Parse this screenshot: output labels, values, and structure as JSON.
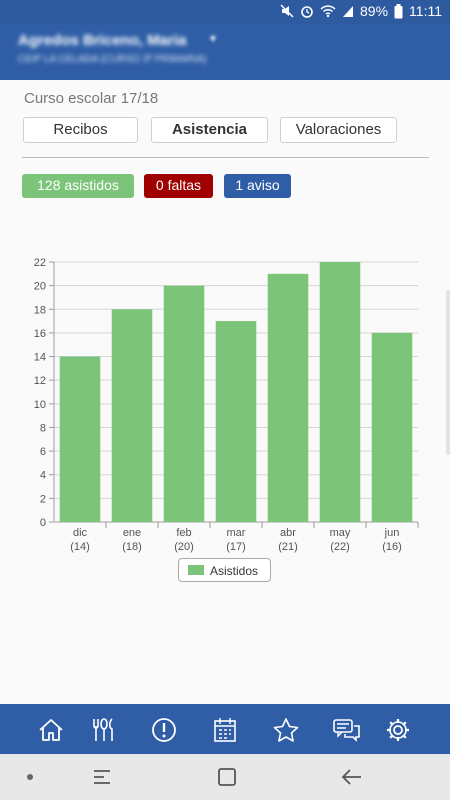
{
  "status_bar": {
    "battery": "89%",
    "time": "11:11"
  },
  "header": {
    "student_name": "Agredos Briceno, Maria",
    "school_line": "CEIP LA CELADA (CURSO 3º PRIMARIA)"
  },
  "course_year": "Curso escolar 17/18",
  "tabs": [
    {
      "label": "Recibos"
    },
    {
      "label": "Asistencia"
    },
    {
      "label": "Valoraciones"
    }
  ],
  "badges": {
    "attended": "128 asistidos",
    "absences": "0 faltas",
    "warnings": "1 aviso"
  },
  "colors": {
    "header": "#2f5ea7",
    "bar": "#7cc47a",
    "badge_green": "#7cc47a",
    "badge_red": "#a00000",
    "badge_blue": "#2f5ea7"
  },
  "chart_data": {
    "type": "bar",
    "categories": [
      "dic",
      "ene",
      "feb",
      "mar",
      "abr",
      "may",
      "jun"
    ],
    "category_sublabels": [
      "(14)",
      "(18)",
      "(20)",
      "(17)",
      "(21)",
      "(22)",
      "(16)"
    ],
    "series": [
      {
        "name": "Asistidos",
        "values": [
          14,
          18,
          20,
          17,
          21,
          22,
          16
        ]
      }
    ],
    "y_ticks": [
      "0",
      "2",
      "4",
      "6",
      "8",
      "10",
      "12",
      "14",
      "16",
      "18",
      "20",
      "22"
    ],
    "ylim": [
      0,
      22
    ],
    "grid": true,
    "legend": "bottom-center"
  },
  "bottom_nav": [
    {
      "icon": "home-icon"
    },
    {
      "icon": "menu-cutlery-icon"
    },
    {
      "icon": "alert-icon"
    },
    {
      "icon": "calendar-icon"
    },
    {
      "icon": "star-icon"
    },
    {
      "icon": "messages-icon"
    },
    {
      "icon": "settings-icon"
    }
  ]
}
